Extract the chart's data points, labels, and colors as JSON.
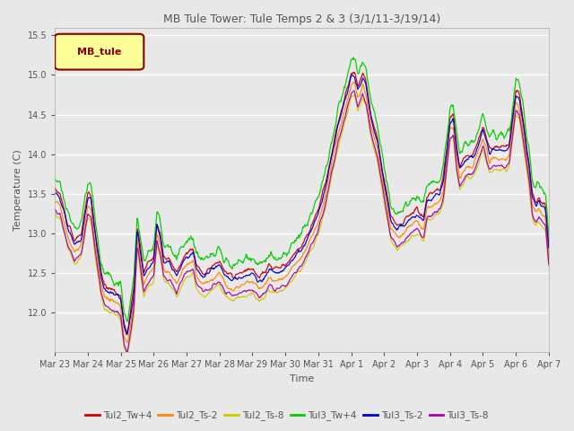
{
  "title": "MB Tule Tower: Tule Temps 2 & 3 (3/1/11-3/19/14)",
  "xlabel": "Time",
  "ylabel": "Temperature (C)",
  "ylim": [
    11.5,
    15.6
  ],
  "yticks": [
    12.0,
    12.5,
    13.0,
    13.5,
    14.0,
    14.5,
    15.0,
    15.5
  ],
  "background_color": "#e8e8e8",
  "legend_label": "MB_tule",
  "legend_box_color": "#ffff99",
  "legend_box_edge": "#8b0000",
  "series": [
    {
      "name": "Tul2_Tw+4",
      "color": "#cc0000",
      "lw": 0.9
    },
    {
      "name": "Tul2_Ts-2",
      "color": "#ff8800",
      "lw": 0.9
    },
    {
      "name": "Tul2_Ts-8",
      "color": "#cccc00",
      "lw": 0.9
    },
    {
      "name": "Tul3_Tw+4",
      "color": "#00cc00",
      "lw": 0.9
    },
    {
      "name": "Tul3_Ts-2",
      "color": "#0000cc",
      "lw": 0.9
    },
    {
      "name": "Tul3_Ts-8",
      "color": "#aa00aa",
      "lw": 0.9
    }
  ],
  "xtick_labels": [
    "Mar 23",
    "Mar 24",
    "Mar 25",
    "Mar 26",
    "Mar 27",
    "Mar 28",
    "Mar 29",
    "Mar 30",
    "Mar 31",
    "Apr 1",
    "Apr 2",
    "Apr 3",
    "Apr 4",
    "Apr 5",
    "Apr 6",
    "Apr 7"
  ],
  "n_points": 800
}
